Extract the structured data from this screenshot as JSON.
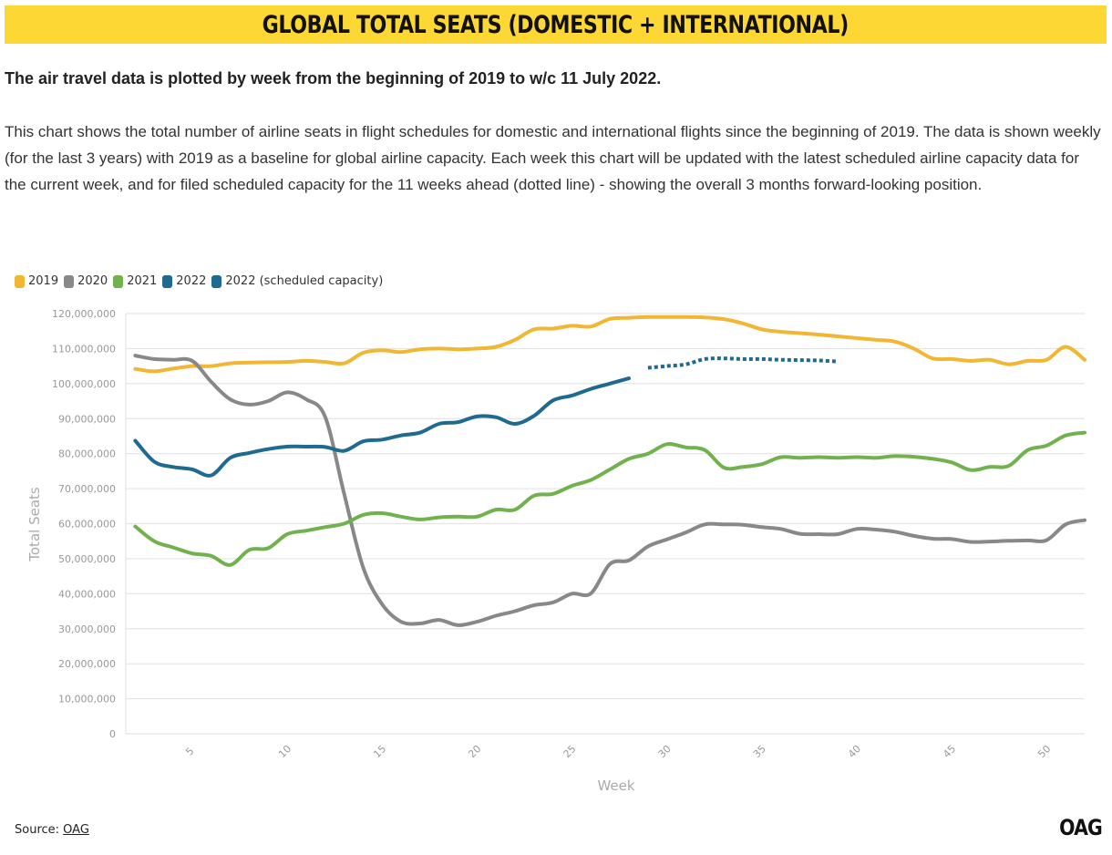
{
  "header": {
    "title": "GLOBAL TOTAL SEATS (DOMESTIC + INTERNATIONAL)",
    "subtitle": "The air travel data is plotted by week from the beginning of 2019 to w/c 11 July 2022.",
    "description": "This chart shows the total number of airline seats in flight schedules for domestic and international flights since the beginning of 2019. The data is shown weekly (for the last 3 years) with 2019 as a baseline for global airline capacity. Each week this chart will be updated with the latest scheduled airline capacity data for the current week, and for filed scheduled capacity for the 11 weeks ahead (dotted line) - showing the overall 3 months forward-looking position."
  },
  "footer": {
    "source_label": "Source:",
    "source_link": "OAG",
    "logo": "OAG"
  },
  "chart_data": {
    "type": "line",
    "xlabel": "Week",
    "ylabel": "Total Seats",
    "xlim": [
      1.5,
      52
    ],
    "ylim": [
      0,
      120000000
    ],
    "x_ticks": [
      5,
      10,
      15,
      20,
      25,
      30,
      35,
      40,
      45,
      50
    ],
    "y_tick_labels": [
      "0",
      "10,000,000",
      "20,000,000",
      "30,000,000",
      "40,000,000",
      "50,000,000",
      "60,000,000",
      "70,000,000",
      "80,000,000",
      "90,000,000",
      "100,000,000",
      "110,000,000",
      "120,000,000"
    ],
    "grid": "horizontal",
    "legend_position": "top-left",
    "series": [
      {
        "name": "2019",
        "color": "#f2b632",
        "style": "solid",
        "x": [
          2,
          3,
          4,
          5,
          6,
          7,
          8,
          9,
          10,
          11,
          12,
          13,
          14,
          15,
          16,
          17,
          18,
          19,
          20,
          21,
          22,
          23,
          24,
          25,
          26,
          27,
          28,
          29,
          30,
          31,
          32,
          33,
          34,
          35,
          36,
          37,
          38,
          39,
          40,
          41,
          42,
          43,
          44,
          45,
          46,
          47,
          48,
          49,
          50,
          51,
          52
        ],
        "values": [
          104200000,
          103500000,
          104300000,
          105000000,
          105000000,
          105800000,
          106000000,
          106100000,
          106200000,
          106500000,
          106200000,
          105800000,
          108800000,
          109500000,
          109000000,
          109800000,
          110000000,
          109800000,
          110000000,
          110500000,
          112500000,
          115500000,
          115700000,
          116500000,
          116300000,
          118500000,
          118800000,
          119000000,
          119000000,
          119000000,
          118900000,
          118400000,
          117200000,
          115500000,
          114800000,
          114400000,
          114000000,
          113500000,
          113000000,
          112500000,
          112000000,
          110000000,
          107200000,
          107000000,
          106500000,
          106800000,
          105500000,
          106500000,
          106800000,
          110500000,
          106800000
        ]
      },
      {
        "name": "2020",
        "color": "#888888",
        "style": "solid",
        "x": [
          2,
          3,
          4,
          5,
          6,
          7,
          8,
          9,
          10,
          11,
          12,
          13,
          14,
          15,
          16,
          17,
          18,
          19,
          20,
          21,
          22,
          23,
          24,
          25,
          26,
          27,
          28,
          29,
          30,
          31,
          32,
          33,
          34,
          35,
          36,
          37,
          38,
          39,
          40,
          41,
          42,
          43,
          44,
          45,
          46,
          47,
          48,
          49,
          50,
          51,
          52
        ],
        "values": [
          108000000,
          107000000,
          106800000,
          106500000,
          100500000,
          95500000,
          94000000,
          95000000,
          97500000,
          95500000,
          90500000,
          68500000,
          47500000,
          37000000,
          32000000,
          31500000,
          32500000,
          31000000,
          32000000,
          33700000,
          35000000,
          36700000,
          37500000,
          40000000,
          40100000,
          48500000,
          49500000,
          53500000,
          55500000,
          57500000,
          59800000,
          59800000,
          59700000,
          59000000,
          58500000,
          57100000,
          57000000,
          57000000,
          58500000,
          58300000,
          57700000,
          56500000,
          55700000,
          55600000,
          54800000,
          54900000,
          55100000,
          55200000,
          55300000,
          59800000,
          61000000
        ]
      },
      {
        "name": "2021",
        "color": "#71b24f",
        "style": "solid",
        "x": [
          2,
          3,
          4,
          5,
          6,
          7,
          8,
          9,
          10,
          11,
          12,
          13,
          14,
          15,
          16,
          17,
          18,
          19,
          20,
          21,
          22,
          23,
          24,
          25,
          26,
          27,
          28,
          29,
          30,
          31,
          32,
          33,
          34,
          35,
          36,
          37,
          38,
          39,
          40,
          41,
          42,
          43,
          44,
          45,
          46,
          47,
          48,
          49,
          50,
          51,
          52
        ],
        "values": [
          59200000,
          55000000,
          53200000,
          51500000,
          50800000,
          48200000,
          52500000,
          53000000,
          57000000,
          58000000,
          59000000,
          60000000,
          62500000,
          63000000,
          62000000,
          61200000,
          61800000,
          62000000,
          62000000,
          64000000,
          64000000,
          68000000,
          68500000,
          70800000,
          72500000,
          75500000,
          78500000,
          80000000,
          82700000,
          81800000,
          81000000,
          76000000,
          76200000,
          77000000,
          79000000,
          78800000,
          79000000,
          78800000,
          79000000,
          78800000,
          79300000,
          79100000,
          78500000,
          77500000,
          75300000,
          76200000,
          76500000,
          81000000,
          82300000,
          85200000,
          86000000
        ]
      },
      {
        "name": "2022",
        "color": "#1e6a91",
        "style": "solid",
        "x": [
          2,
          3,
          4,
          5,
          6,
          7,
          8,
          9,
          10,
          11,
          12,
          13,
          14,
          15,
          16,
          17,
          18,
          19,
          20,
          21,
          22,
          23,
          24,
          25,
          26,
          27,
          28
        ],
        "values": [
          83700000,
          77700000,
          76200000,
          75500000,
          73800000,
          78800000,
          80200000,
          81300000,
          82000000,
          82000000,
          81900000,
          80800000,
          83500000,
          84000000,
          85200000,
          86000000,
          88500000,
          89000000,
          90600000,
          90400000,
          88500000,
          90800000,
          95200000,
          96600000,
          98500000,
          100000000,
          101500000
        ]
      },
      {
        "name": "2022 (scheduled capacity)",
        "color": "#1e6a91",
        "style": "dotted",
        "x": [
          29,
          30,
          31,
          32,
          33,
          34,
          35,
          36,
          37,
          38,
          39
        ],
        "values": [
          104500000,
          105000000,
          105500000,
          107000000,
          107200000,
          107000000,
          107000000,
          106800000,
          106700000,
          106600000,
          106300000
        ]
      }
    ]
  }
}
